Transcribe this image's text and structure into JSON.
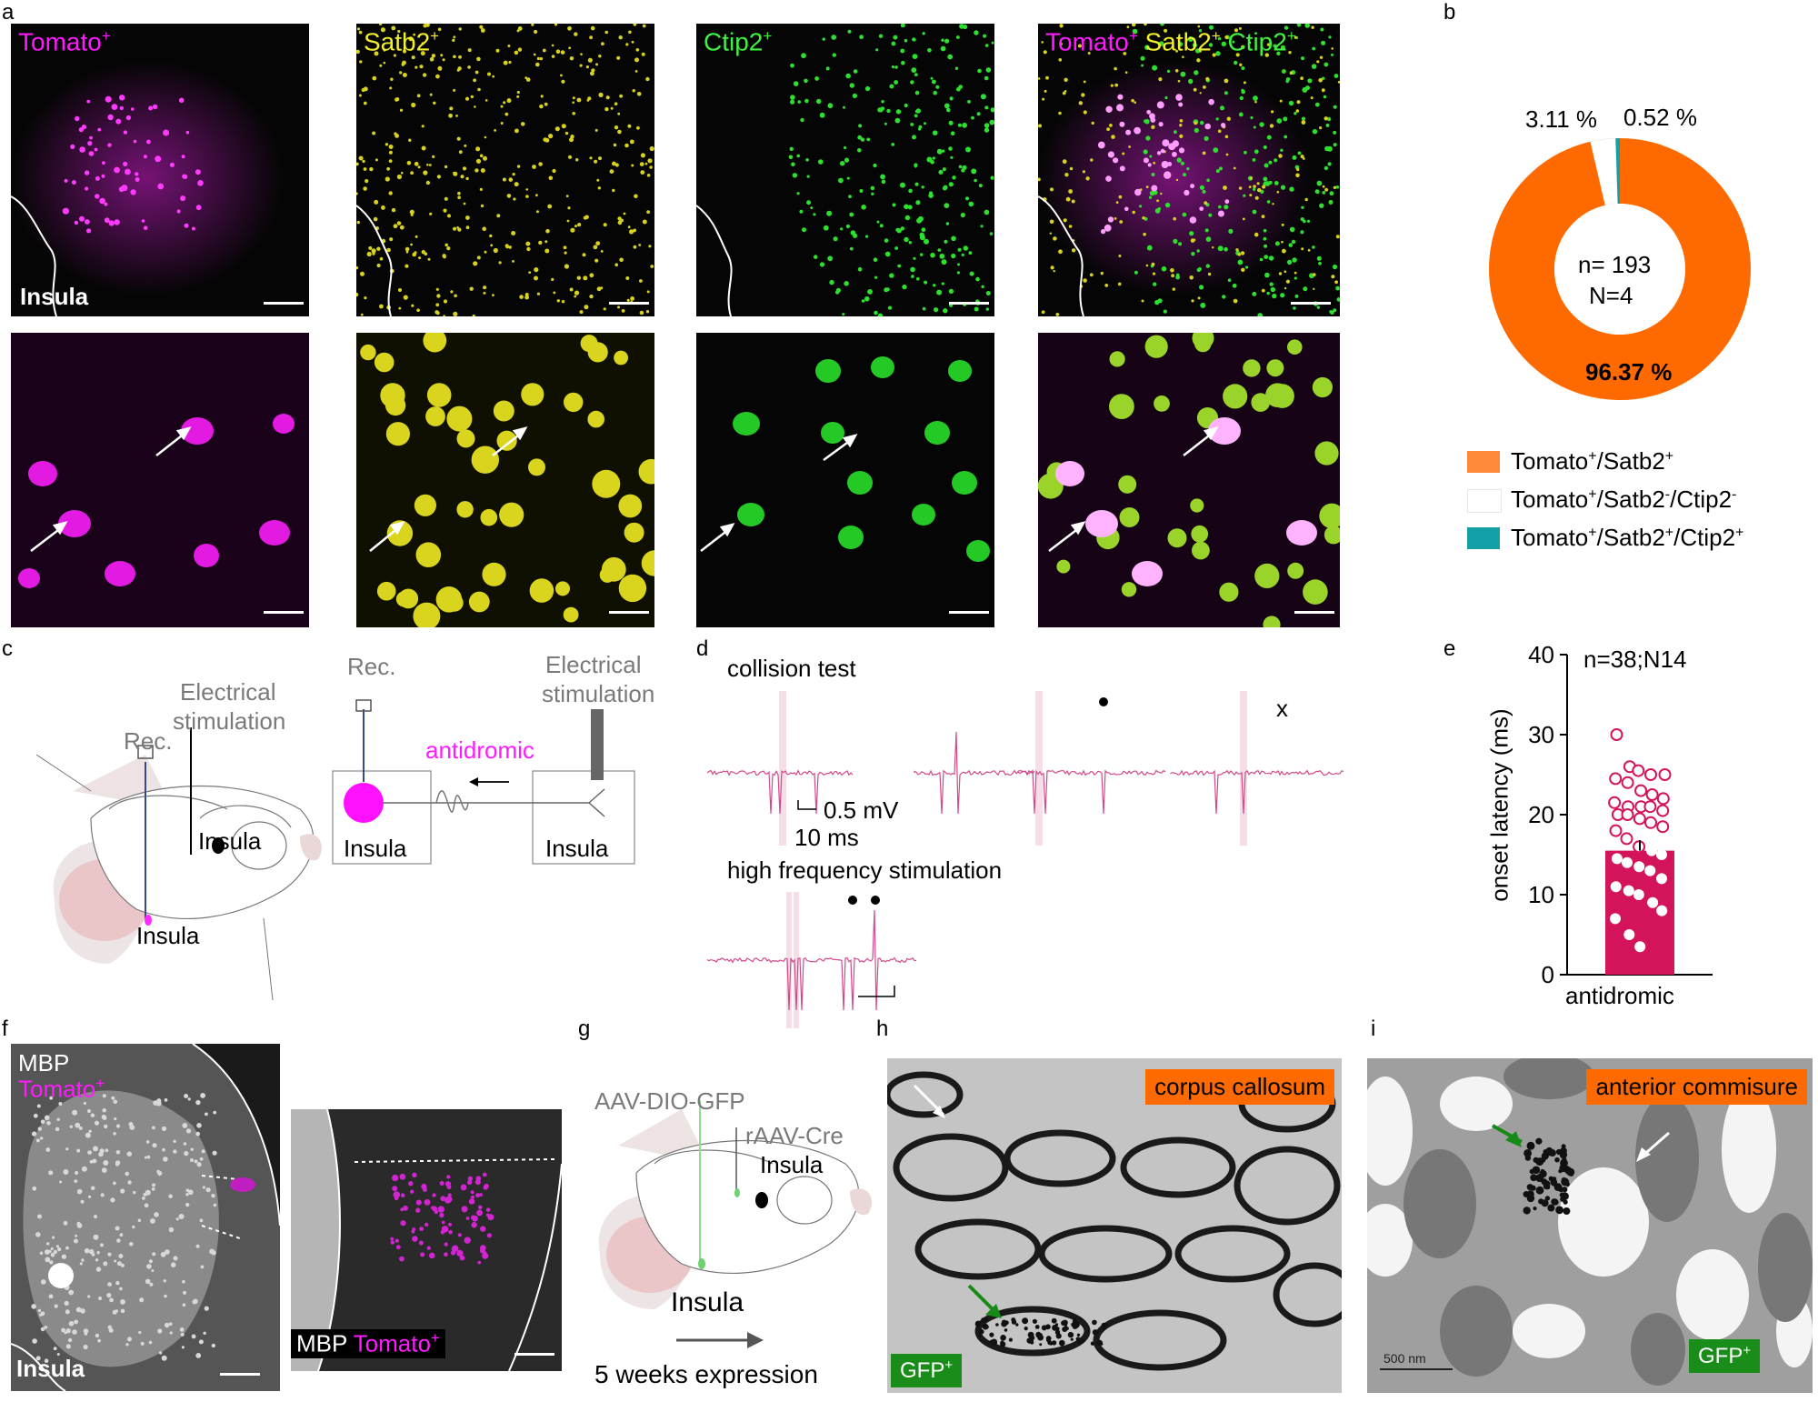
{
  "panel_letters": {
    "a": "a",
    "b": "b",
    "c": "c",
    "d": "d",
    "e": "e",
    "f": "f",
    "g": "g",
    "h": "h",
    "i": "i"
  },
  "panel_a": {
    "channels": [
      {
        "name": "Tomato",
        "sup": "+"
      },
      {
        "name": "Satb2",
        "sup": "+"
      },
      {
        "name": "Ctip2",
        "sup": "+"
      }
    ],
    "merged": {
      "tomato": "Tomato",
      "satb2": "Satb2",
      "ctip2": "Ctip2",
      "sup": "+"
    },
    "region_label": "Insula"
  },
  "panel_b": {
    "n_label": "n= 193",
    "N_label": "N=4",
    "slice_labels": {
      "tomato_satb2": "96.37 %",
      "satb2_neg": "3.11 %",
      "coloc": "0.52 %"
    },
    "legend": [
      {
        "pre": "Tomato",
        "s1": "+",
        "mid": "/Satb2",
        "s2": "+",
        "mid2": "",
        "s3": "",
        "color": "#ff6a00"
      },
      {
        "pre": "Tomato",
        "s1": "+",
        "mid": "/Satb2",
        "s2": "-",
        "mid2": "/Ctip2",
        "s3": "-",
        "color": "#ffffff"
      },
      {
        "pre": "Tomato",
        "s1": "+",
        "mid": "/Satb2",
        "s2": "+",
        "mid2": "/Ctip2",
        "s3": "+",
        "color": "#14a0a8"
      }
    ],
    "colors": {
      "tomato_satb2": "#ff6a00",
      "satb2_neg": "#ffffff",
      "coloc": "#14a0a8"
    }
  },
  "panel_c": {
    "rec": "Rec.",
    "electrical1": "Electrical",
    "electrical2": "stimulation",
    "insula": "Insula",
    "antidromic": "antidromic"
  },
  "panel_d": {
    "collision": "collision test",
    "mv": "0.5 mV",
    "ms": "10 ms",
    "hfs": "high frequency stimulation",
    "x_mark": "x"
  },
  "panel_e": {
    "n_label": "n=38;N14",
    "ylabel": "onset latency (ms)",
    "ticks": [
      "0",
      "10",
      "20",
      "30",
      "40"
    ],
    "category": "antidromic",
    "bar_color": "#d4145a"
  },
  "chart_data": {
    "type": "bar",
    "categories": [
      "antidromic"
    ],
    "values": [
      15.5
    ],
    "ylabel": "onset latency (ms)",
    "ylim": [
      0,
      40
    ],
    "points": [
      30,
      26,
      25.5,
      25,
      25,
      24.5,
      24,
      23,
      22.5,
      22,
      21.5,
      21,
      21,
      21,
      20.5,
      20,
      20,
      19.5,
      19,
      18.5,
      18,
      17,
      16,
      15.5,
      15,
      14.5,
      14,
      13.5,
      13,
      12,
      11,
      10.5,
      10,
      9,
      8,
      7,
      5,
      3.5
    ],
    "annotation": "n=38;N14"
  },
  "panel_f": {
    "mbp": "MBP",
    "tomato": "Tomato",
    "sup": "+",
    "insula": "Insula"
  },
  "panel_g": {
    "aav": "AAV-DIO-GFP",
    "raav": "rAAV-Cre",
    "insula": "Insula",
    "weeks": "5 weeks expression"
  },
  "panel_h": {
    "tag": "corpus callosum",
    "gfp": "GFP",
    "sup": "+"
  },
  "panel_i": {
    "tag": "anterior commisure",
    "gfp": "GFP",
    "sup": "+",
    "scale": "500 nm"
  }
}
